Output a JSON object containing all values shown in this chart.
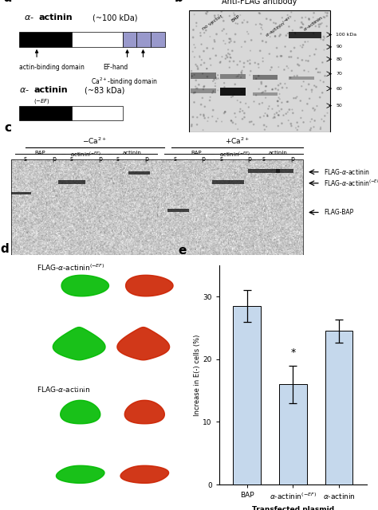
{
  "bar_categories": [
    "BAP",
    "α-actinin(-EF)",
    "α-actinin"
  ],
  "bar_values": [
    28.5,
    16.0,
    24.5
  ],
  "bar_errors": [
    2.5,
    3.0,
    1.8
  ],
  "bar_color": "#c5d8ec",
  "bar_edgecolor": "#000000",
  "ylabel": "Increase in E(-) cells (%)",
  "xlabel": "Transfected plasmid",
  "ylim": [
    0,
    35
  ],
  "yticks": [
    0,
    10,
    20,
    30
  ],
  "significant_bar_idx": 1,
  "panel_label_size": 11,
  "fig_width": 4.74,
  "fig_height": 6.4,
  "fig_dpi": 100
}
